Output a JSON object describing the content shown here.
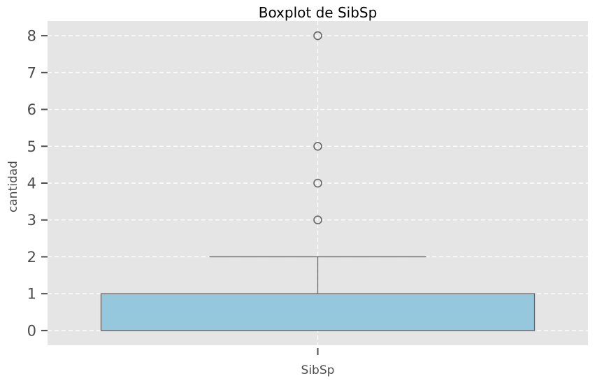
{
  "chart_data": {
    "type": "boxplot",
    "title": "Boxplot de SibSp",
    "xlabel": "",
    "ylabel": "cantidad",
    "categories": [
      "SibSp"
    ],
    "yticks": [
      0,
      1,
      2,
      3,
      4,
      5,
      6,
      7,
      8
    ],
    "ylim": [
      -0.4,
      8.4
    ],
    "grid": true,
    "box": {
      "min": 0,
      "q1": 0,
      "median": 0,
      "q3": 1,
      "max": 2,
      "outliers": [
        3,
        4,
        5,
        8
      ]
    },
    "colors": {
      "box_fill": "#95c8dc",
      "line": "#666666",
      "plot_bg": "#e5e5e5",
      "grid": "#ffffff"
    }
  }
}
